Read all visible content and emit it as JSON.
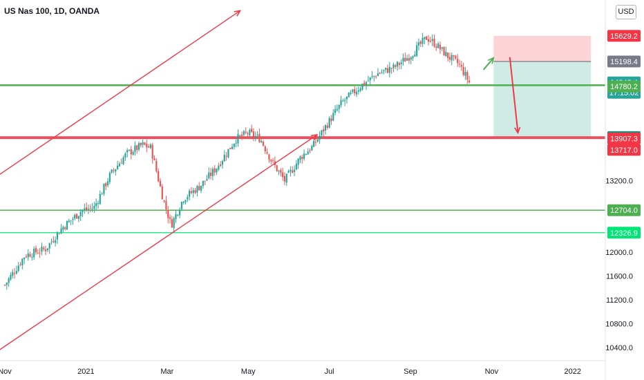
{
  "header": {
    "title": "US Nas 100, 1D, OANDA",
    "currency": "USD"
  },
  "chart_data": {
    "type": "candlestick",
    "instrument": "US Nas 100",
    "timeframe": "1D",
    "source": "OANDA",
    "y_axis": {
      "range": [
        10180,
        16230
      ],
      "ticks": [
        "10400.0",
        "10800.0",
        "11200.0",
        "11600.0",
        "12000.0",
        "13200.0"
      ]
    },
    "x_axis": {
      "ticks": [
        {
          "label": "Nov",
          "month": 0
        },
        {
          "label": "2021",
          "month": 2
        },
        {
          "label": "Mar",
          "month": 4
        },
        {
          "label": "May",
          "month": 6
        },
        {
          "label": "Jul",
          "month": 8
        },
        {
          "label": "Sep",
          "month": 10
        },
        {
          "label": "Nov",
          "month": 12
        },
        {
          "label": "2022",
          "month": 14
        }
      ]
    },
    "price_labels": [
      {
        "value": 15629.2,
        "text": "15629.2",
        "color": "#f23645"
      },
      {
        "value": 15198.4,
        "text": "15198.4",
        "color": "#787b86"
      },
      {
        "value": 14848.4,
        "text": "14848.4",
        "sub": "17:15:02",
        "color": "#26a69a"
      },
      {
        "value": 14780.2,
        "text": "14780.2",
        "color": "#4caf50"
      },
      {
        "value": 13931.3,
        "text": "13931.3",
        "color": "#089981"
      },
      {
        "value": 13907.3,
        "text": "13907.3",
        "color": "#f23645"
      },
      {
        "value": 13717.0,
        "text": "13717.0",
        "color": "#f23645"
      },
      {
        "value": 12704.0,
        "text": "12704.0",
        "color": "#4caf50"
      },
      {
        "value": 12326.9,
        "text": "12326.9",
        "color": "#00e676"
      }
    ],
    "horizontal_levels": [
      {
        "value": 14800,
        "color": "#4caf50",
        "width": 2.5
      },
      {
        "value": 13931.3,
        "color": "#f23645",
        "width": 2
      },
      {
        "value": 13907.3,
        "color": "#f23645",
        "width": 1.5
      },
      {
        "value": 12704.0,
        "color": "#4caf50",
        "width": 1.5
      },
      {
        "value": 12326.9,
        "color": "#00e676",
        "width": 1.2
      }
    ],
    "position_tool": {
      "start_month": 12.05,
      "end_month": 14.45,
      "stop": 15629.2,
      "entry": 15198.4,
      "target": 13931.3,
      "stop_color": "#f23645",
      "target_color": "#089981"
    },
    "trendlines": [
      {
        "from": [
          -0.2,
          13270
        ],
        "to": [
          5.8,
          16050
        ],
        "arrow": true,
        "color": "#f23645"
      },
      {
        "from": [
          -0.2,
          10330
        ],
        "to": [
          7.7,
          13970
        ],
        "arrow": true,
        "color": "#f23645"
      }
    ],
    "arrows": [
      {
        "from": [
          11.8,
          15060
        ],
        "to": [
          12.05,
          15260
        ],
        "color": "#4caf50"
      },
      {
        "from": [
          12.45,
          15270
        ],
        "to": [
          12.65,
          14000
        ],
        "color": "#f23645"
      }
    ],
    "ohlc_closes": [
      {
        "m": 0.0,
        "c": 11450
      },
      {
        "m": 0.5,
        "c": 11950
      },
      {
        "m": 1.0,
        "c": 12050
      },
      {
        "m": 1.4,
        "c": 12400
      },
      {
        "m": 1.9,
        "c": 12700
      },
      {
        "m": 2.2,
        "c": 12750
      },
      {
        "m": 2.6,
        "c": 13300
      },
      {
        "m": 3.0,
        "c": 13650
      },
      {
        "m": 3.4,
        "c": 13800
      },
      {
        "m": 3.6,
        "c": 13750
      },
      {
        "m": 3.9,
        "c": 12900
      },
      {
        "m": 4.1,
        "c": 12450
      },
      {
        "m": 4.4,
        "c": 12900
      },
      {
        "m": 4.8,
        "c": 13100
      },
      {
        "m": 5.2,
        "c": 13400
      },
      {
        "m": 5.7,
        "c": 13900
      },
      {
        "m": 6.0,
        "c": 14000
      },
      {
        "m": 6.3,
        "c": 13900
      },
      {
        "m": 6.6,
        "c": 13500
      },
      {
        "m": 6.9,
        "c": 13200
      },
      {
        "m": 7.3,
        "c": 13600
      },
      {
        "m": 7.6,
        "c": 13780
      },
      {
        "m": 7.9,
        "c": 14100
      },
      {
        "m": 8.3,
        "c": 14500
      },
      {
        "m": 8.8,
        "c": 14800
      },
      {
        "m": 9.2,
        "c": 15000
      },
      {
        "m": 9.6,
        "c": 15100
      },
      {
        "m": 10.0,
        "c": 15300
      },
      {
        "m": 10.4,
        "c": 15600
      },
      {
        "m": 10.6,
        "c": 15500
      },
      {
        "m": 10.9,
        "c": 15300
      },
      {
        "m": 11.2,
        "c": 15150
      },
      {
        "m": 11.45,
        "c": 14850
      }
    ]
  }
}
